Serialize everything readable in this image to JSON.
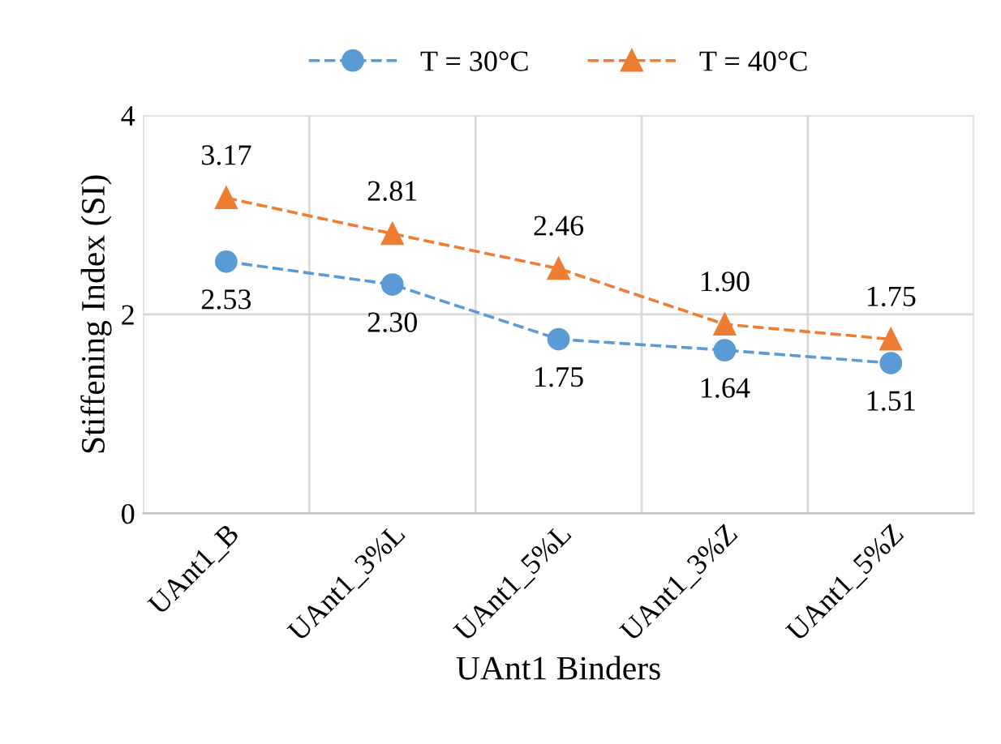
{
  "chart_data": {
    "type": "line",
    "xlabel": "UAnt1 Binders",
    "ylabel": "Stiffening Index (SI)",
    "categories": [
      "UAnt1_B",
      "UAnt1_3%L",
      "UAnt1_5%L",
      "UAnt1_3%Z",
      "UAnt1_5%Z"
    ],
    "series": [
      {
        "name": "T = 30°C",
        "color": "#5b9bd5",
        "marker": "circle",
        "values": [
          2.53,
          2.3,
          1.75,
          1.64,
          1.51
        ],
        "value_labels": [
          "2.53",
          "2.30",
          "1.75",
          "1.64",
          "1.51"
        ]
      },
      {
        "name": "T = 40°C",
        "color": "#ed7d31",
        "marker": "triangle",
        "values": [
          3.17,
          2.81,
          2.46,
          1.9,
          1.75
        ],
        "value_labels": [
          "3.17",
          "2.81",
          "2.46",
          "1.90",
          "1.75"
        ]
      }
    ],
    "ylim": [
      0,
      4
    ],
    "yticks": [
      0,
      2,
      4
    ],
    "grid": true,
    "legend": "top",
    "line_style": "dashed",
    "data_labels": true
  }
}
